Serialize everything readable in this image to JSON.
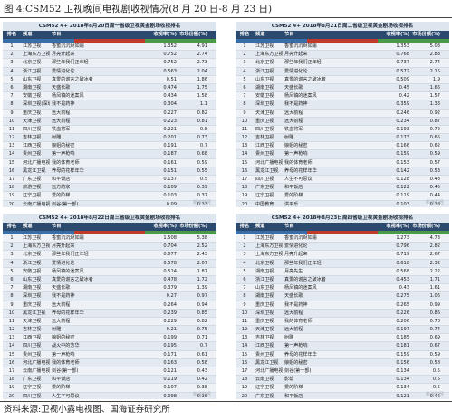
{
  "figure_title": "图 4:CSM52 卫视晚间电视剧收视情况(8 月 20 日-8 月 23 日)",
  "source": "资料来源:卫视小露电视图、国海证券研究所",
  "watermark": "新浪财经",
  "colors": {
    "header": "#2c4a6e",
    "total_text": "#b0201a",
    "bar_blue": "#3a6ea8",
    "bar_red": "#c0392b",
    "bar_green": "#4a9a4a"
  },
  "columns": {
    "rank": "排名",
    "channel": "频道",
    "show": "节目",
    "rating": "收视率(%)",
    "share": "市场份额(%)"
  },
  "panels": [
    {
      "title": "CSM52 4+ 2018年8月20日周一省级卫视黄金剧场收视排名",
      "rows": [
        {
          "rank": "1",
          "channel": "江苏卫视",
          "show": "香蜜沉沉烬如霜",
          "rating": "1.352",
          "share": "4.91"
        },
        {
          "rank": "2",
          "channel": "上海东方卫视",
          "show": "月亮升起来",
          "rating": "0.752",
          "share": "2.74"
        },
        {
          "rank": "3",
          "channel": "北京卫视",
          "show": "那些年我们正年轻",
          "rating": "0.752",
          "share": "2.73"
        },
        {
          "rank": "4",
          "channel": "浙江卫视",
          "show": "爱情进化论",
          "rating": "0.563",
          "share": "2.04"
        },
        {
          "rank": "5",
          "channel": "山东卫视",
          "show": "真爱的谎言之破冰者",
          "rating": "0.51",
          "share": "1.86"
        },
        {
          "rank": "6",
          "channel": "湖南卫视",
          "show": "天盛长歌",
          "rating": "0.474",
          "share": "1.75"
        },
        {
          "rank": "7",
          "channel": "安徽卫视",
          "show": "杨凤镇的迷案风",
          "rating": "0.434",
          "share": "1.58"
        },
        {
          "rank": "8",
          "channel": "深圳卫视(深圳电视台)",
          "show": "我不是药神",
          "rating": "0.304",
          "share": "1.1"
        },
        {
          "rank": "9",
          "channel": "重庆卫视",
          "show": "远大前程",
          "rating": "0.227",
          "share": "0.82"
        },
        {
          "rank": "10",
          "channel": "天津卫视",
          "show": "远大前程",
          "rating": "0.223",
          "share": "0.81"
        },
        {
          "rank": "11",
          "channel": "四川卫视",
          "show": "铁血将军",
          "rating": "0.221",
          "share": "0.8"
        },
        {
          "rank": "12",
          "channel": "吉林卫视",
          "show": "射雕",
          "rating": "0.201",
          "share": "0.73"
        },
        {
          "rank": "13",
          "channel": "江西卫视",
          "show": "娘姐的秘密",
          "rating": "0.191",
          "share": "0.7"
        },
        {
          "rank": "14",
          "channel": "贵州卫视",
          "show": "第一声枪响",
          "rating": "0.187",
          "share": "0.68"
        },
        {
          "rank": "15",
          "channel": "河北广播电视台卫视频道",
          "show": "我的体育老师",
          "rating": "0.161",
          "share": "0.59"
        },
        {
          "rank": "16",
          "channel": "黑龙江卫视",
          "show": "养母的花样年华",
          "rating": "0.151",
          "share": "0.55"
        },
        {
          "rank": "17",
          "channel": "广东卫视",
          "show": "和平饭店",
          "rating": "0.137",
          "share": "0.5"
        },
        {
          "rank": "18",
          "channel": "旅游卫视",
          "show": "远方的家",
          "rating": "0.109",
          "share": "0.39"
        },
        {
          "rank": "19",
          "channel": "辽宁卫视",
          "show": "爱的阶梯",
          "rating": "0.103",
          "share": "0.37"
        },
        {
          "rank": "20",
          "channel": "云南广播电视台卫视频道",
          "show": "剑谷(第一部)",
          "rating": "0.09",
          "share": "0.33"
        }
      ]
    },
    {
      "title": "CSM52 4+ 2018年8月21日周二省级卫视黄金剧场收视排名",
      "rows": [
        {
          "rank": "1",
          "channel": "江苏卫视",
          "show": "香蜜沉沉烬如霜",
          "rating": "1.353",
          "share": "5.03"
        },
        {
          "rank": "2",
          "channel": "上海东方卫视",
          "show": "月亮升起来",
          "rating": "0.768",
          "share": "2.83"
        },
        {
          "rank": "3",
          "channel": "北京卫视",
          "show": "那些年我们正年轻",
          "rating": "0.737",
          "share": "2.74"
        },
        {
          "rank": "4",
          "channel": "浙江卫视",
          "show": "爱情进化论",
          "rating": "0.572",
          "share": "2.15"
        },
        {
          "rank": "5",
          "channel": "山东卫视",
          "show": "真爱的谎言之破冰者",
          "rating": "0.509",
          "share": "1.9"
        },
        {
          "rank": "6",
          "channel": "湖南卫视",
          "show": "天盛长歌",
          "rating": "0.45",
          "share": "1.66"
        },
        {
          "rank": "7",
          "channel": "安徽卫视",
          "show": "杨凤镇的迷案风",
          "rating": "0.42",
          "share": "1.57"
        },
        {
          "rank": "8",
          "channel": "深圳卫视",
          "show": "我不是药神",
          "rating": "0.359",
          "share": "1.33"
        },
        {
          "rank": "9",
          "channel": "天津卫视",
          "show": "远大前程",
          "rating": "0.246",
          "share": "0.92"
        },
        {
          "rank": "10",
          "channel": "重庆卫视",
          "show": "远大前程",
          "rating": "0.234",
          "share": "0.87"
        },
        {
          "rank": "11",
          "channel": "四川卫视",
          "show": "铁血将军",
          "rating": "0.193",
          "share": "0.72"
        },
        {
          "rank": "12",
          "channel": "吉林卫视",
          "show": "射雕",
          "rating": "0.173",
          "share": "0.65"
        },
        {
          "rank": "13",
          "channel": "江西卫视",
          "show": "娘姐的秘密",
          "rating": "0.166",
          "share": "0.62"
        },
        {
          "rank": "14",
          "channel": "贵州卫视",
          "show": "第一声枪响",
          "rating": "0.159",
          "share": "0.59"
        },
        {
          "rank": "15",
          "channel": "河北广播电视台卫视频道",
          "show": "我的体育老师",
          "rating": "0.153",
          "share": "0.57"
        },
        {
          "rank": "16",
          "channel": "黑龙江卫视",
          "show": "养母的花样年华",
          "rating": "0.142",
          "share": "0.53"
        },
        {
          "rank": "17",
          "channel": "四川卫视",
          "show": "人生不可思议",
          "rating": "0.128",
          "share": "0.48"
        },
        {
          "rank": "18",
          "channel": "广东卫视",
          "show": "和平饭店",
          "rating": "0.122",
          "share": "0.45"
        },
        {
          "rank": "19",
          "channel": "辽宁卫视",
          "show": "爱的阶梯",
          "rating": "0.119",
          "share": "0.44"
        },
        {
          "rank": "20",
          "channel": "中国教育",
          "show": "洪平乐",
          "rating": "0.103",
          "share": "0.38"
        }
      ]
    },
    {
      "title": "CSM52 4+ 2018年8月22日周三省级卫视黄金剧场收视排名",
      "rows": [
        {
          "rank": "1",
          "channel": "江苏卫视",
          "show": "香蜜沉沉烬如霜",
          "rating": "1.508",
          "share": "5.38"
        },
        {
          "rank": "2",
          "channel": "上海东方卫视",
          "show": "月亮升起来",
          "rating": "0.704",
          "share": "2.52"
        },
        {
          "rank": "3",
          "channel": "北京卫视",
          "show": "那些年我们正年轻",
          "rating": "0.677",
          "share": "2.43"
        },
        {
          "rank": "4",
          "channel": "浙江卫视",
          "show": "爱情进化论",
          "rating": "0.578",
          "share": "2.07"
        },
        {
          "rank": "5",
          "channel": "安徽卫视",
          "show": "杨凤镇的迷案风",
          "rating": "0.524",
          "share": "1.87"
        },
        {
          "rank": "6",
          "channel": "山东卫视",
          "show": "真爱的谎言之破冰者",
          "rating": "0.478",
          "share": "1.72"
        },
        {
          "rank": "7",
          "channel": "湖南卫视",
          "show": "天盛长歌",
          "rating": "0.379",
          "share": "1.39"
        },
        {
          "rank": "8",
          "channel": "深圳卫视",
          "show": "我不是药神",
          "rating": "0.27",
          "share": "0.97"
        },
        {
          "rank": "9",
          "channel": "重庆卫视",
          "show": "远大前程",
          "rating": "0.264",
          "share": "0.94"
        },
        {
          "rank": "10",
          "channel": "黑龙江卫视",
          "show": "养母的花样年华",
          "rating": "0.239",
          "share": "0.85"
        },
        {
          "rank": "11",
          "channel": "天津卫视",
          "show": "远大前程",
          "rating": "0.229",
          "share": "0.82"
        },
        {
          "rank": "12",
          "channel": "吉林卫视",
          "show": "射雕",
          "rating": "0.21",
          "share": "0.75"
        },
        {
          "rank": "13",
          "channel": "江西卫视",
          "show": "娘姐的秘密",
          "rating": "0.199",
          "share": "0.71"
        },
        {
          "rank": "14",
          "channel": "四川卫视",
          "show": "战火中的芳华",
          "rating": "0.195",
          "share": "0.7"
        },
        {
          "rank": "15",
          "channel": "贵州卫视",
          "show": "第一声枪响",
          "rating": "0.171",
          "share": "0.61"
        },
        {
          "rank": "16",
          "channel": "河北广播电视台卫视频道",
          "show": "我的体育老师",
          "rating": "0.163",
          "share": "0.58"
        },
        {
          "rank": "17",
          "channel": "云南广播电视台卫视频道",
          "show": "剑谷(第一部)",
          "rating": "0.121",
          "share": "0.43"
        },
        {
          "rank": "18",
          "channel": "广东卫视",
          "show": "和平饭店",
          "rating": "0.119",
          "share": "0.42"
        },
        {
          "rank": "19",
          "channel": "辽宁卫视",
          "show": "爱的阶梯",
          "rating": "0.107",
          "share": "0.38"
        },
        {
          "rank": "20",
          "channel": "四川卫视",
          "show": "人生不可思议",
          "rating": "0.098",
          "share": "0.35"
        }
      ],
      "total": {
        "rank": "中央",
        "channel": "中央电视台综合频道",
        "show": "香蜜沉沉烬如霜",
        "rating": "1.584",
        "share": "5.66"
      }
    },
    {
      "title": "CSM52 4+ 2018年8月23日周四省级卫视黄金剧场收视排名",
      "rows": [
        {
          "rank": "1",
          "channel": "江苏卫视",
          "show": "香蜜沉沉烬如霜",
          "rating": "1.273",
          "share": "4.73"
        },
        {
          "rank": "2",
          "channel": "上海东方卫视",
          "show": "爱情进化论",
          "rating": "0.796",
          "share": "2.82"
        },
        {
          "rank": "3",
          "channel": "上海东方卫视",
          "show": "月亮升起来",
          "rating": "0.719",
          "share": "2.67"
        },
        {
          "rank": "4",
          "channel": "北京卫视",
          "show": "那些年我们正年轻",
          "rating": "0.618",
          "share": "2.32"
        },
        {
          "rank": "5",
          "channel": "湖南卫视",
          "show": "月亮先生",
          "rating": "0.568",
          "share": "2.22"
        },
        {
          "rank": "6",
          "channel": "浙江卫视",
          "show": "真爱的谎言之破冰者",
          "rating": "0.453",
          "share": "1.71"
        },
        {
          "rank": "7",
          "channel": "山东卫视",
          "show": "杨凤镇的迷案风",
          "rating": "0.43",
          "share": "1.61"
        },
        {
          "rank": "8",
          "channel": "湖南卫视",
          "show": "天盛长歌",
          "rating": "0.275",
          "share": "1.06"
        },
        {
          "rank": "9",
          "channel": "重庆卫视",
          "show": "我不是药神",
          "rating": "0.265",
          "share": "0.99"
        },
        {
          "rank": "10",
          "channel": "深圳卫视",
          "show": "远大前程",
          "rating": "0.226",
          "share": "0.86"
        },
        {
          "rank": "11",
          "channel": "重庆卫视",
          "show": "我的体育老师",
          "rating": "0.206",
          "share": "0.78"
        },
        {
          "rank": "12",
          "channel": "天津卫视",
          "show": "远大前程",
          "rating": "0.197",
          "share": "0.74"
        },
        {
          "rank": "13",
          "channel": "吉林卫视",
          "show": "射雕",
          "rating": "0.185",
          "share": "0.69"
        },
        {
          "rank": "14",
          "channel": "江西卫视",
          "show": "第一声枪响",
          "rating": "0.181",
          "share": "0.67"
        },
        {
          "rank": "15",
          "channel": "贵州卫视",
          "show": "养母的花样年华",
          "rating": "0.159",
          "share": "0.59"
        },
        {
          "rank": "16",
          "channel": "黑龙江卫视",
          "show": "娘姐的秘密",
          "rating": "0.156",
          "share": "0.58"
        },
        {
          "rank": "17",
          "channel": "河北广播电视台卫视频道",
          "show": "剑谷(第一部)",
          "rating": "0.134",
          "share": "0.5"
        },
        {
          "rank": "18",
          "channel": "云南卫视",
          "show": "影帮",
          "rating": "0.134",
          "share": "0.5"
        },
        {
          "rank": "19",
          "channel": "辽宁卫视",
          "show": "爱的阶梯",
          "rating": "0.134",
          "share": "0.5"
        },
        {
          "rank": "20",
          "channel": "广东卫视",
          "show": "和平饭店",
          "rating": "0.121",
          "share": "0.45"
        }
      ],
      "total": {
        "rank": "中央",
        "channel": "中央电视台综合频道",
        "show": "香蜜沉沉烬如霜",
        "rating": "1.483",
        "share": "5.5"
      }
    }
  ]
}
